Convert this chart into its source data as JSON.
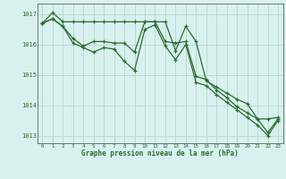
{
  "hours": [
    0,
    1,
    2,
    3,
    4,
    5,
    6,
    7,
    8,
    9,
    10,
    11,
    12,
    13,
    14,
    15,
    16,
    17,
    18,
    19,
    20,
    21,
    22,
    23
  ],
  "series1": [
    1016.7,
    1017.05,
    1016.75,
    1016.75,
    1016.75,
    1016.75,
    1016.75,
    1016.75,
    1016.75,
    1016.75,
    1016.75,
    1016.75,
    1016.75,
    1015.8,
    1016.6,
    1016.1,
    1014.8,
    1014.6,
    1014.4,
    1014.2,
    1014.05,
    1013.55,
    1013.55,
    1013.6
  ],
  "series2": [
    1016.7,
    1016.85,
    1016.6,
    1016.2,
    1015.95,
    1016.1,
    1016.1,
    1016.05,
    1016.05,
    1015.75,
    1016.75,
    1016.75,
    1016.1,
    1016.05,
    1016.1,
    1014.95,
    1014.85,
    1014.5,
    1014.25,
    1013.95,
    1013.75,
    1013.55,
    1013.1,
    1013.55
  ],
  "series3": [
    1016.7,
    1016.85,
    1016.6,
    1016.05,
    1015.9,
    1015.75,
    1015.9,
    1015.85,
    1015.45,
    1015.15,
    1016.5,
    1016.65,
    1015.95,
    1015.5,
    1016.0,
    1014.75,
    1014.65,
    1014.35,
    1014.1,
    1013.85,
    1013.6,
    1013.35,
    1013.0,
    1013.5
  ],
  "line_color": "#2d6a2d",
  "bg_color": "#d8f0ee",
  "grid_color": "#b0d0cc",
  "xlabel": "Graphe pression niveau de la mer (hPa)",
  "ylim_min": 1012.75,
  "ylim_max": 1017.35,
  "yticks": [
    1013,
    1014,
    1015,
    1016,
    1017
  ]
}
